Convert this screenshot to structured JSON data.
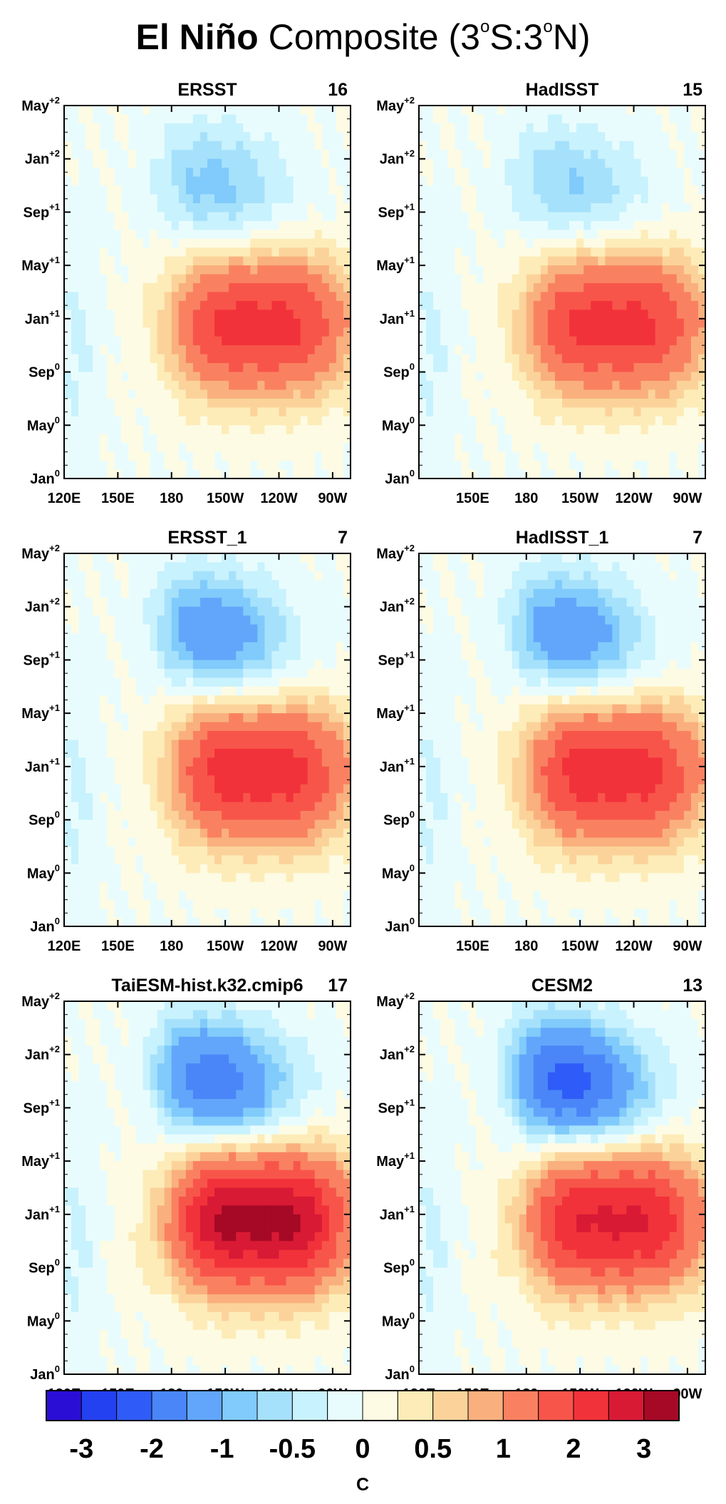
{
  "title": {
    "prefix": "El Niño",
    "rest": "Composite (3",
    "o1": "o",
    "mid": "S:3",
    "o2": "o",
    "end": "N)"
  },
  "chart_data": {
    "type": "heatmap",
    "variable": "SST anomaly composite, El Niño events, 3°S–3°N",
    "x_axis": {
      "ticks": [
        "120E",
        "150E",
        "180",
        "150W",
        "120W",
        "90W"
      ],
      "range_deg_east": [
        120,
        280
      ]
    },
    "y_axis": {
      "ticks": [
        {
          "label": "Jan",
          "sup": "0"
        },
        {
          "label": "May",
          "sup": "0"
        },
        {
          "label": "Sep",
          "sup": "0"
        },
        {
          "label": "Jan",
          "sup": "+1"
        },
        {
          "label": "May",
          "sup": "+1"
        },
        {
          "label": "Sep",
          "sup": "+1"
        },
        {
          "label": "Jan",
          "sup": "+2"
        },
        {
          "label": "May",
          "sup": "+2"
        }
      ]
    },
    "panels": [
      {
        "name": "ERSST",
        "count": "16",
        "peak": 2.2,
        "cold": -0.9,
        "show_120E": true
      },
      {
        "name": "HadISST",
        "count": "15",
        "peak": 2.2,
        "cold": -0.8,
        "show_120E": false
      },
      {
        "name": "ERSST_1",
        "count": "7",
        "peak": 2.3,
        "cold": -1.4,
        "show_120E": true
      },
      {
        "name": "HadISST_1",
        "count": "7",
        "peak": 2.3,
        "cold": -1.4,
        "show_120E": false
      },
      {
        "name": "TaiESM-hist.k32.cmip6",
        "count": "17",
        "peak": 3.2,
        "cold": -1.9,
        "show_120E": true
      },
      {
        "name": "CESM2",
        "count": "13",
        "peak": 2.6,
        "cold": -2.3,
        "show_120E": true
      }
    ],
    "colorbar": {
      "unit": "C",
      "labels": [
        "-3",
        "-2",
        "-1",
        "-0.5",
        "0",
        "0.5",
        "1",
        "2",
        "3"
      ],
      "levels": [
        -3,
        -2.5,
        -2,
        -1.5,
        -1,
        -0.75,
        -0.5,
        -0.25,
        0,
        0.25,
        0.5,
        0.75,
        1,
        1.5,
        2,
        2.5,
        3
      ],
      "colors": [
        "#2a0ed6",
        "#2341f0",
        "#2f5cf8",
        "#4a86f8",
        "#62a6fb",
        "#80cbfb",
        "#a6e1fc",
        "#c8f2fd",
        "#e9fcfd",
        "#fdfbe3",
        "#fdecb8",
        "#fbd39a",
        "#f9b07e",
        "#f98161",
        "#f8554a",
        "#f2323a",
        "#d91a35",
        "#a60925"
      ]
    }
  }
}
